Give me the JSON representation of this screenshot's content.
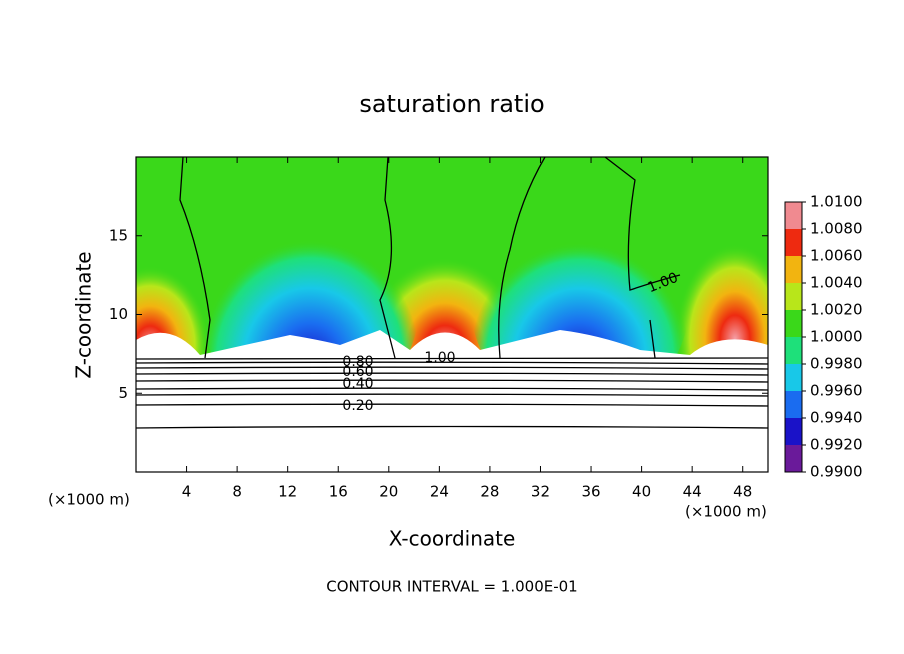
{
  "chart_data": {
    "type": "contour",
    "title": "saturation ratio",
    "x_label": "X-coordinate",
    "y_label": "Z-coordinate",
    "x_unit": "(×1000 m)",
    "y_unit": "(×1000 m)",
    "footer": "CONTOUR INTERVAL = 1.000E-01",
    "xlim": [
      0,
      50
    ],
    "xticks": [
      4,
      8,
      12,
      16,
      20,
      24,
      28,
      32,
      36,
      40,
      44,
      48
    ],
    "ylim": [
      0,
      20
    ],
    "yticks": [
      5,
      10,
      15
    ],
    "contour_labels": [
      "1.00",
      "0.80",
      "0.60",
      "0.40",
      "0.20",
      "1.00"
    ],
    "colorbar": {
      "ticks": [
        {
          "value": 0.99,
          "label": "0.9900"
        },
        {
          "value": 0.992,
          "label": "0.9920"
        },
        {
          "value": 0.994,
          "label": "0.9940"
        },
        {
          "value": 0.996,
          "label": "0.9960"
        },
        {
          "value": 0.998,
          "label": "0.9980"
        },
        {
          "value": 1.0,
          "label": "1.0000"
        },
        {
          "value": 1.002,
          "label": "1.0020"
        },
        {
          "value": 1.004,
          "label": "1.0040"
        },
        {
          "value": 1.006,
          "label": "1.0060"
        },
        {
          "value": 1.008,
          "label": "1.0080"
        },
        {
          "value": 1.01,
          "label": "1.0100"
        }
      ],
      "colors": [
        "#6a1a9a",
        "#1a12c8",
        "#1a6cf0",
        "#18c8e8",
        "#1ee07a",
        "#3ad81a",
        "#b8e61a",
        "#f2b410",
        "#ee2a10",
        "#f08a90"
      ]
    }
  }
}
